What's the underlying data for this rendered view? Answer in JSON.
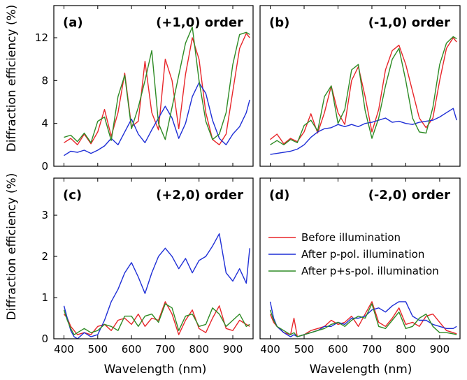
{
  "figure": {
    "ylabel": "Diffraction efficiency (%)",
    "xlabel": "Wavelength (nm)"
  },
  "legend": {
    "entries": [
      {
        "label": "Before illumination",
        "color": "#e8262a"
      },
      {
        "label": "After p-pol. illumination",
        "color": "#1f2fd6"
      },
      {
        "label": "After p+s-pol. illumination",
        "color": "#2e8b25"
      }
    ]
  },
  "chart_data": [
    {
      "type": "line",
      "panel": "(a)",
      "title": "(+1,0) order",
      "xlim": [
        370,
        960
      ],
      "ylim": [
        0,
        15
      ],
      "xticks": [
        400,
        500,
        600,
        700,
        800,
        900
      ],
      "yticks": [
        0,
        4,
        8,
        12
      ],
      "series": [
        {
          "name": "Before illumination",
          "x": [
            400,
            420,
            440,
            460,
            480,
            500,
            520,
            540,
            560,
            580,
            600,
            620,
            640,
            660,
            680,
            700,
            720,
            740,
            760,
            780,
            800,
            820,
            840,
            860,
            880,
            900,
            920,
            940,
            950
          ],
          "y": [
            2.2,
            2.6,
            2.0,
            3.0,
            2.1,
            3.2,
            5.3,
            2.8,
            5.0,
            8.7,
            3.7,
            4.2,
            9.8,
            5.0,
            3.4,
            10.0,
            8.0,
            3.5,
            8.6,
            12.0,
            10.0,
            5.0,
            2.5,
            2.0,
            3.0,
            7.0,
            11.0,
            12.4,
            12.0
          ]
        },
        {
          "name": "After p-pol. illumination",
          "x": [
            400,
            420,
            440,
            460,
            480,
            500,
            520,
            540,
            560,
            580,
            600,
            620,
            640,
            660,
            680,
            700,
            720,
            740,
            760,
            780,
            800,
            820,
            840,
            860,
            880,
            900,
            920,
            940,
            950
          ],
          "y": [
            1.0,
            1.4,
            1.3,
            1.5,
            1.2,
            1.5,
            1.9,
            2.6,
            2.0,
            3.2,
            4.4,
            3.0,
            2.2,
            3.4,
            4.5,
            5.6,
            4.5,
            2.6,
            4.0,
            6.5,
            7.8,
            6.8,
            4.3,
            2.6,
            2.0,
            3.0,
            3.7,
            5.0,
            6.2
          ]
        },
        {
          "name": "After p+s-pol. illumination",
          "x": [
            400,
            420,
            440,
            460,
            480,
            500,
            520,
            540,
            560,
            580,
            600,
            620,
            640,
            660,
            680,
            700,
            720,
            740,
            760,
            780,
            800,
            820,
            840,
            860,
            880,
            900,
            920,
            940,
            950
          ],
          "y": [
            2.7,
            2.9,
            2.3,
            3.1,
            2.2,
            4.2,
            4.6,
            2.4,
            6.5,
            8.5,
            3.5,
            5.5,
            8.0,
            10.8,
            4.0,
            2.5,
            5.5,
            8.5,
            11.5,
            13.0,
            8.0,
            4.2,
            2.5,
            3.0,
            5.0,
            9.5,
            12.3,
            12.5,
            12.3
          ]
        }
      ]
    },
    {
      "type": "line",
      "panel": "(b)",
      "title": "(-1,0) order",
      "xlim": [
        370,
        960
      ],
      "ylim": [
        0,
        15
      ],
      "xticks": [
        400,
        500,
        600,
        700,
        800,
        900
      ],
      "yticks": [],
      "series": [
        {
          "name": "Before illumination",
          "x": [
            400,
            420,
            440,
            460,
            480,
            500,
            520,
            540,
            560,
            580,
            600,
            620,
            640,
            660,
            680,
            700,
            720,
            740,
            760,
            780,
            800,
            820,
            840,
            860,
            880,
            900,
            920,
            940,
            950
          ],
          "y": [
            2.5,
            3.0,
            2.1,
            2.6,
            2.3,
            3.2,
            4.9,
            3.1,
            5.0,
            7.5,
            5.0,
            3.9,
            8.0,
            9.3,
            6.5,
            3.2,
            5.3,
            9.0,
            10.8,
            11.3,
            9.5,
            7.0,
            4.5,
            3.6,
            4.5,
            8.0,
            11.0,
            12.0,
            11.6
          ]
        },
        {
          "name": "After p-pol. illumination",
          "x": [
            400,
            420,
            440,
            460,
            480,
            500,
            520,
            540,
            560,
            580,
            600,
            620,
            640,
            660,
            680,
            700,
            720,
            740,
            760,
            780,
            800,
            820,
            840,
            860,
            880,
            900,
            920,
            940,
            950
          ],
          "y": [
            1.1,
            1.2,
            1.3,
            1.4,
            1.6,
            2.0,
            2.7,
            3.2,
            3.5,
            3.6,
            3.9,
            3.7,
            3.9,
            3.7,
            4.0,
            4.1,
            4.3,
            4.5,
            4.1,
            4.2,
            4.0,
            3.9,
            4.1,
            4.2,
            4.3,
            4.6,
            5.0,
            5.4,
            4.3
          ]
        },
        {
          "name": "After p+s-pol. illumination",
          "x": [
            400,
            420,
            440,
            460,
            480,
            500,
            520,
            540,
            560,
            580,
            600,
            620,
            640,
            660,
            680,
            700,
            720,
            740,
            760,
            780,
            800,
            820,
            840,
            860,
            880,
            900,
            920,
            940,
            950
          ],
          "y": [
            2.0,
            2.4,
            2.0,
            2.5,
            2.2,
            3.8,
            4.3,
            3.3,
            6.5,
            7.5,
            4.0,
            5.3,
            9.0,
            9.5,
            5.2,
            2.6,
            4.5,
            7.5,
            10.0,
            11.0,
            8.0,
            4.5,
            3.2,
            3.1,
            5.5,
            9.5,
            11.5,
            12.1,
            11.9
          ]
        }
      ]
    },
    {
      "type": "line",
      "panel": "(c)",
      "title": "(+2,0) order",
      "xlim": [
        370,
        960
      ],
      "ylim": [
        0,
        3.9
      ],
      "xticks": [
        400,
        500,
        600,
        700,
        800,
        900
      ],
      "yticks": [
        0,
        1,
        2,
        3
      ],
      "series": [
        {
          "name": "Before illumination",
          "x": [
            400,
            410,
            420,
            430,
            440,
            460,
            480,
            500,
            520,
            540,
            560,
            580,
            600,
            620,
            640,
            660,
            680,
            700,
            720,
            740,
            760,
            780,
            800,
            820,
            840,
            860,
            880,
            900,
            920,
            940,
            950
          ],
          "y": [
            0.6,
            0.5,
            0.3,
            0.2,
            0.1,
            0.15,
            0.1,
            0.3,
            0.35,
            0.2,
            0.45,
            0.5,
            0.35,
            0.6,
            0.3,
            0.5,
            0.45,
            0.9,
            0.6,
            0.1,
            0.45,
            0.7,
            0.25,
            0.15,
            0.5,
            0.8,
            0.25,
            0.2,
            0.45,
            0.35,
            0.3
          ]
        },
        {
          "name": "After p-pol. illumination",
          "x": [
            400,
            410,
            420,
            430,
            440,
            460,
            480,
            500,
            520,
            540,
            560,
            580,
            600,
            620,
            640,
            660,
            680,
            700,
            720,
            740,
            760,
            780,
            800,
            820,
            840,
            860,
            880,
            900,
            920,
            940,
            950
          ],
          "y": [
            0.8,
            0.5,
            0.2,
            0.05,
            0.0,
            0.15,
            0.05,
            0.1,
            0.45,
            0.9,
            1.2,
            1.6,
            1.85,
            1.5,
            1.1,
            1.6,
            2.0,
            2.2,
            2.0,
            1.7,
            1.95,
            1.6,
            1.9,
            2.0,
            2.25,
            2.55,
            1.6,
            1.4,
            1.7,
            1.35,
            2.2
          ]
        },
        {
          "name": "After p+s-pol. illumination",
          "x": [
            400,
            410,
            420,
            430,
            440,
            460,
            480,
            500,
            520,
            540,
            560,
            580,
            600,
            620,
            640,
            660,
            680,
            700,
            720,
            740,
            760,
            780,
            800,
            820,
            840,
            860,
            880,
            900,
            920,
            940,
            950
          ],
          "y": [
            0.7,
            0.45,
            0.25,
            0.1,
            0.15,
            0.25,
            0.15,
            0.2,
            0.35,
            0.3,
            0.2,
            0.55,
            0.55,
            0.3,
            0.55,
            0.6,
            0.4,
            0.85,
            0.75,
            0.2,
            0.55,
            0.6,
            0.3,
            0.35,
            0.75,
            0.6,
            0.3,
            0.45,
            0.6,
            0.3,
            0.35
          ]
        }
      ]
    },
    {
      "type": "line",
      "panel": "(d)",
      "title": "(-2,0) order",
      "xlim": [
        370,
        960
      ],
      "ylim": [
        0,
        3.9
      ],
      "xticks": [
        400,
        500,
        600,
        700,
        800,
        900
      ],
      "yticks": [],
      "series": [
        {
          "name": "Before illumination",
          "x": [
            400,
            410,
            420,
            440,
            460,
            470,
            480,
            500,
            520,
            540,
            560,
            580,
            600,
            620,
            640,
            660,
            680,
            700,
            720,
            740,
            760,
            780,
            800,
            820,
            840,
            860,
            880,
            900,
            920,
            940,
            950
          ],
          "y": [
            0.6,
            0.4,
            0.3,
            0.15,
            0.1,
            0.5,
            0.05,
            0.1,
            0.2,
            0.25,
            0.3,
            0.45,
            0.35,
            0.4,
            0.55,
            0.3,
            0.6,
            0.9,
            0.4,
            0.3,
            0.5,
            0.75,
            0.35,
            0.4,
            0.3,
            0.55,
            0.6,
            0.4,
            0.2,
            0.15,
            0.12
          ]
        },
        {
          "name": "After p-pol. illumination",
          "x": [
            400,
            410,
            420,
            440,
            460,
            470,
            480,
            500,
            520,
            540,
            560,
            580,
            600,
            620,
            640,
            660,
            680,
            700,
            720,
            740,
            760,
            780,
            800,
            820,
            840,
            860,
            880,
            900,
            920,
            940,
            950
          ],
          "y": [
            0.9,
            0.5,
            0.3,
            0.15,
            0.05,
            0.1,
            0.05,
            0.1,
            0.15,
            0.2,
            0.3,
            0.3,
            0.4,
            0.35,
            0.5,
            0.5,
            0.55,
            0.7,
            0.75,
            0.65,
            0.8,
            0.9,
            0.9,
            0.55,
            0.45,
            0.45,
            0.35,
            0.3,
            0.25,
            0.25,
            0.3
          ]
        },
        {
          "name": "After p+s-pol. illumination",
          "x": [
            400,
            410,
            420,
            440,
            460,
            470,
            480,
            500,
            520,
            540,
            560,
            580,
            600,
            620,
            640,
            660,
            680,
            700,
            720,
            740,
            760,
            780,
            800,
            820,
            840,
            860,
            880,
            900,
            920,
            940,
            950
          ],
          "y": [
            0.7,
            0.45,
            0.3,
            0.2,
            0.1,
            0.15,
            0.05,
            0.1,
            0.15,
            0.2,
            0.25,
            0.35,
            0.4,
            0.3,
            0.45,
            0.55,
            0.5,
            0.85,
            0.3,
            0.25,
            0.45,
            0.65,
            0.25,
            0.3,
            0.5,
            0.6,
            0.3,
            0.15,
            0.15,
            0.12,
            0.1
          ]
        }
      ]
    }
  ]
}
